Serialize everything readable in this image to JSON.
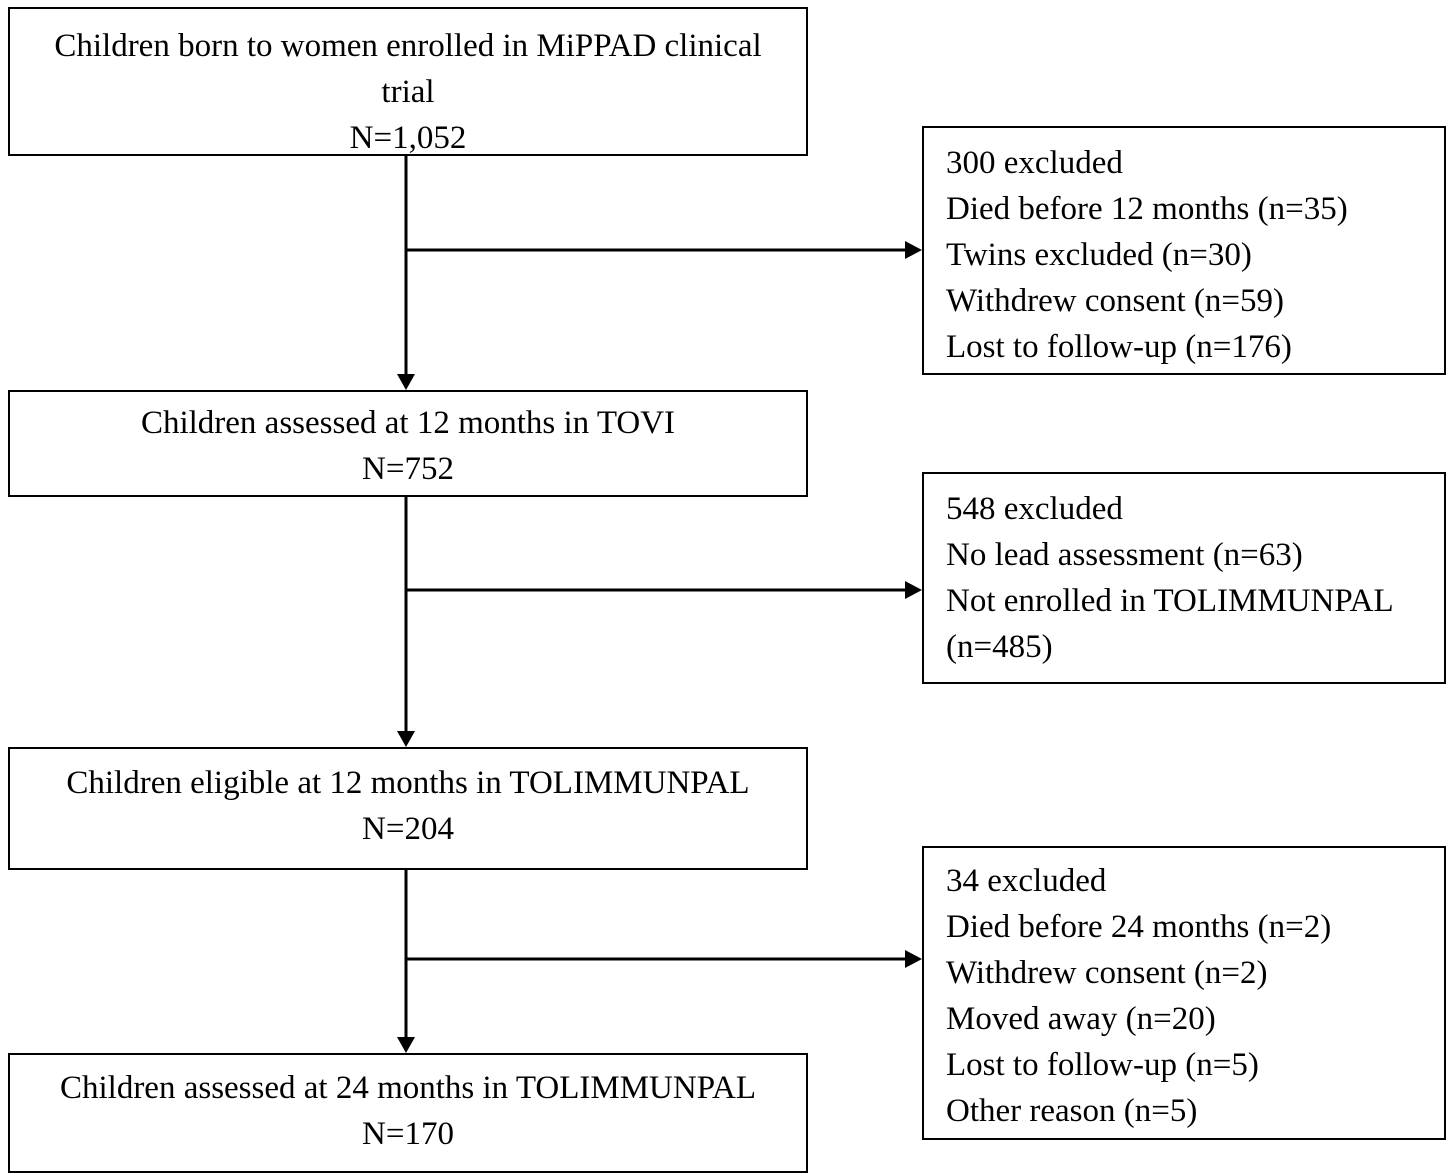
{
  "flow": {
    "stage1": {
      "lines": [
        "Children born to women enrolled in MiPPAD clinical",
        "trial",
        "N=1,052"
      ]
    },
    "stage2": {
      "lines": [
        "Children assessed at 12 months in TOVI",
        "N=752"
      ]
    },
    "stage3": {
      "lines": [
        "Children eligible at 12 months in TOLIMMUNPAL",
        "N=204"
      ]
    },
    "stage4": {
      "lines": [
        "Children assessed at 24 months in TOLIMMUNPAL",
        "N=170"
      ]
    }
  },
  "exclusions": {
    "first": {
      "lines": [
        "300 excluded",
        "Died before 12 months (n=35)",
        "Twins excluded (n=30)",
        "Withdrew consent (n=59)",
        "Lost to follow-up (n=176)"
      ]
    },
    "second": {
      "lines": [
        "548 excluded",
        "No lead assessment (n=63)",
        "Not enrolled in TOLIMMUNPAL",
        "(n=485)"
      ]
    },
    "third": {
      "lines": [
        "34 excluded",
        "Died before 24 months (n=2)",
        "Withdrew consent (n=2)",
        "Moved away (n=20)",
        "Lost to follow-up (n=5)",
        "Other reason (n=5)"
      ]
    }
  },
  "colors": {
    "line": "#000000",
    "background": "#ffffff"
  }
}
